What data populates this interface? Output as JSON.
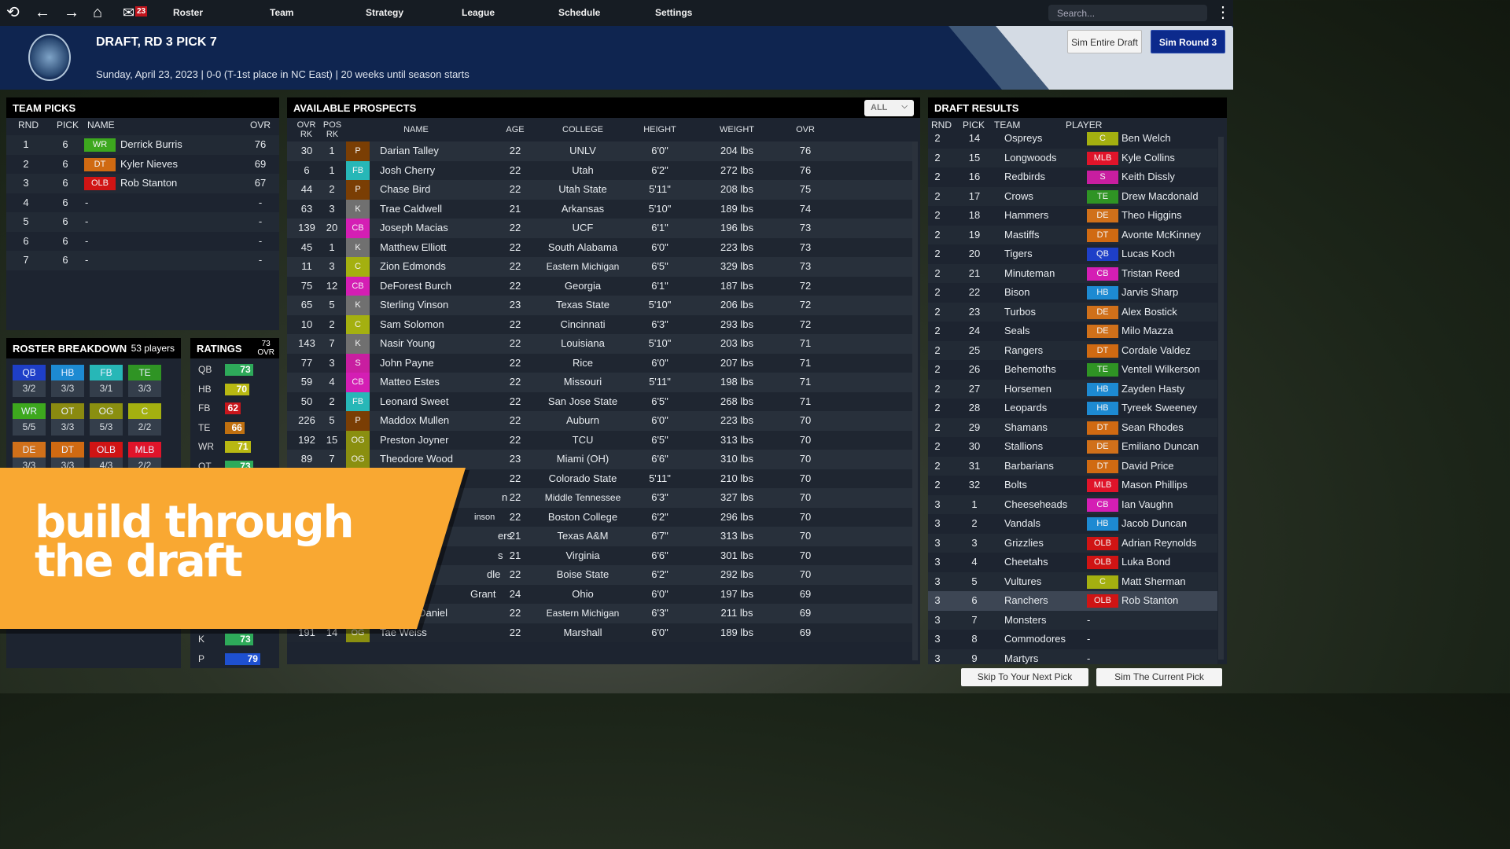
{
  "nav": {
    "mail_count": "23",
    "menu": [
      "Roster",
      "Team",
      "Strategy",
      "League",
      "Schedule",
      "Settings"
    ],
    "search_placeholder": "Search..."
  },
  "header": {
    "title": "DRAFT, RD 3 PICK 7",
    "subtitle": "Sunday, April 23, 2023 | 0-0 (T-1st place in NC East)  | 20 weeks until season starts",
    "sim_entire": "Sim Entire Draft",
    "sim_round": "Sim Round 3"
  },
  "colors": {
    "QB": "#1e3fc8",
    "HB": "#1d8ad2",
    "FB": "#27b7b7",
    "TE": "#2f9424",
    "WR": "#3da81e",
    "OT": "#8a8a10",
    "OG": "#8a8f10",
    "C": "#a4b010",
    "DE": "#d0701a",
    "DT": "#d06a12",
    "OLB": "#d01414",
    "MLB": "#e0142a",
    "CB": "#d41eb4",
    "S": "#c81ea0",
    "K": "#707070",
    "P": "#7a3e04"
  },
  "team_picks": {
    "title": "TEAM PICKS",
    "headers": [
      "RND",
      "PICK",
      "NAME",
      "OVR"
    ],
    "rows": [
      {
        "rnd": "1",
        "pick": "6",
        "pos": "WR",
        "name": "Derrick Burris",
        "ovr": "76"
      },
      {
        "rnd": "2",
        "pick": "6",
        "pos": "DT",
        "name": "Kyler Nieves",
        "ovr": "69"
      },
      {
        "rnd": "3",
        "pick": "6",
        "pos": "OLB",
        "name": "Rob Stanton",
        "ovr": "67"
      },
      {
        "rnd": "4",
        "pick": "6",
        "pos": "",
        "name": "-",
        "ovr": "-"
      },
      {
        "rnd": "5",
        "pick": "6",
        "pos": "",
        "name": "-",
        "ovr": "-"
      },
      {
        "rnd": "6",
        "pick": "6",
        "pos": "",
        "name": "-",
        "ovr": "-"
      },
      {
        "rnd": "7",
        "pick": "6",
        "pos": "",
        "name": "-",
        "ovr": "-"
      }
    ]
  },
  "roster": {
    "title": "ROSTER BREAKDOWN",
    "count": "53 players",
    "items": [
      {
        "pos": "QB",
        "val": "3/2"
      },
      {
        "pos": "HB",
        "val": "3/3"
      },
      {
        "pos": "FB",
        "val": "3/1"
      },
      {
        "pos": "TE",
        "val": "3/3"
      },
      {
        "pos": "WR",
        "val": "5/5"
      },
      {
        "pos": "OT",
        "val": "3/3"
      },
      {
        "pos": "OG",
        "val": "5/3"
      },
      {
        "pos": "C",
        "val": "2/2"
      },
      {
        "pos": "DE",
        "val": "3/3"
      },
      {
        "pos": "DT",
        "val": "3/3"
      },
      {
        "pos": "OLB",
        "val": "4/3"
      },
      {
        "pos": "MLB",
        "val": "2/2"
      }
    ]
  },
  "ratings": {
    "title": "RATINGS",
    "ovr": "73",
    "ovr_label": "OVR",
    "items": [
      {
        "pos": "QB",
        "val": 73,
        "color": "#2eaa5a"
      },
      {
        "pos": "HB",
        "val": 70,
        "color": "#b8b812"
      },
      {
        "pos": "FB",
        "val": 62,
        "color": "#c8161c"
      },
      {
        "pos": "TE",
        "val": 66,
        "color": "#c07010"
      },
      {
        "pos": "WR",
        "val": 71,
        "color": "#b8b812"
      },
      {
        "pos": "OT",
        "val": 73,
        "color": "#2eaa5a"
      }
    ],
    "bottom": [
      {
        "pos": "K",
        "val": 73,
        "color": "#2eaa5a"
      },
      {
        "pos": "P",
        "val": 79,
        "color": "#1e50d0"
      }
    ]
  },
  "prospects": {
    "title": "AVAILABLE PROSPECTS",
    "filter": "ALL",
    "headers": {
      "ovr_rk": "OVR RK",
      "pos_rk": "POS RK",
      "name": "NAME",
      "age": "AGE",
      "college": "COLLEGE",
      "height": "HEIGHT",
      "weight": "WEIGHT",
      "ovr": "OVR"
    },
    "rows": [
      [
        "30",
        "1",
        "P",
        "Darian Talley",
        "22",
        "UNLV",
        "6'0\"",
        "204 lbs",
        "76"
      ],
      [
        "6",
        "1",
        "FB",
        "Josh Cherry",
        "22",
        "Utah",
        "6'2\"",
        "272 lbs",
        "76"
      ],
      [
        "44",
        "2",
        "P",
        "Chase Bird",
        "22",
        "Utah State",
        "5'11\"",
        "208 lbs",
        "75"
      ],
      [
        "63",
        "3",
        "K",
        "Trae Caldwell",
        "21",
        "Arkansas",
        "5'10\"",
        "189 lbs",
        "74"
      ],
      [
        "139",
        "20",
        "CB",
        "Joseph Macias",
        "22",
        "UCF",
        "6'1\"",
        "196 lbs",
        "73"
      ],
      [
        "45",
        "1",
        "K",
        "Matthew Elliott",
        "22",
        "South Alabama",
        "6'0\"",
        "223 lbs",
        "73"
      ],
      [
        "11",
        "3",
        "C",
        "Zion Edmonds",
        "22",
        "Eastern Michigan",
        "6'5\"",
        "329 lbs",
        "73"
      ],
      [
        "75",
        "12",
        "CB",
        "DeForest Burch",
        "22",
        "Georgia",
        "6'1\"",
        "187 lbs",
        "72"
      ],
      [
        "65",
        "5",
        "K",
        "Sterling Vinson",
        "23",
        "Texas State",
        "5'10\"",
        "206 lbs",
        "72"
      ],
      [
        "10",
        "2",
        "C",
        "Sam Solomon",
        "22",
        "Cincinnati",
        "6'3\"",
        "293 lbs",
        "72"
      ],
      [
        "143",
        "7",
        "K",
        "Nasir Young",
        "22",
        "Louisiana",
        "5'10\"",
        "203 lbs",
        "71"
      ],
      [
        "77",
        "3",
        "S",
        "John Payne",
        "22",
        "Rice",
        "6'0\"",
        "207 lbs",
        "71"
      ],
      [
        "59",
        "4",
        "CB",
        "Matteo Estes",
        "22",
        "Missouri",
        "5'11\"",
        "198 lbs",
        "71"
      ],
      [
        "50",
        "2",
        "FB",
        "Leonard Sweet",
        "22",
        "San Jose State",
        "6'5\"",
        "268 lbs",
        "71"
      ],
      [
        "226",
        "5",
        "P",
        "Maddox Mullen",
        "22",
        "Auburn",
        "6'0\"",
        "223 lbs",
        "70"
      ],
      [
        "192",
        "15",
        "OG",
        "Preston Joyner",
        "22",
        "TCU",
        "6'5\"",
        "313 lbs",
        "70"
      ],
      [
        "89",
        "7",
        "OG",
        "Theodore Wood",
        "23",
        "Miami (OH)",
        "6'6\"",
        "310 lbs",
        "70"
      ],
      [
        "",
        "",
        "",
        "",
        "22",
        "Colorado State",
        "5'11\"",
        "210 lbs",
        "70"
      ],
      [
        "",
        "",
        "",
        "n",
        "22",
        "Middle Tennessee",
        "6'3\"",
        "327 lbs",
        "70"
      ],
      [
        "",
        "",
        "",
        "inson",
        "22",
        "Boston College",
        "6'2\"",
        "296 lbs",
        "70"
      ],
      [
        "",
        "",
        "",
        "ers",
        "21",
        "Texas A&M",
        "6'7\"",
        "313 lbs",
        "70"
      ],
      [
        "",
        "",
        "",
        "s",
        "21",
        "Virginia",
        "6'6\"",
        "301 lbs",
        "70"
      ],
      [
        "",
        "",
        "",
        "dle",
        "22",
        "Boise State",
        "6'2\"",
        "292 lbs",
        "70"
      ],
      [
        "",
        "",
        "",
        "Grant",
        "24",
        "Ohio",
        "6'0\"",
        "197 lbs",
        "69"
      ],
      [
        "220",
        "29",
        "CB",
        "Juan McDaniel",
        "22",
        "Eastern Michigan",
        "6'3\"",
        "211 lbs",
        "69"
      ],
      [
        "191",
        "14",
        "OG",
        "Tae Weiss",
        "22",
        "Marshall",
        "6'0\"",
        "189 lbs",
        "69"
      ]
    ]
  },
  "results": {
    "title": "DRAFT RESULTS",
    "headers": [
      "RND",
      "PICK",
      "TEAM",
      "PLAYER"
    ],
    "rows": [
      [
        "2",
        "14",
        "Ospreys",
        "C",
        "Ben Welch"
      ],
      [
        "2",
        "15",
        "Longwoods",
        "MLB",
        "Kyle Collins"
      ],
      [
        "2",
        "16",
        "Redbirds",
        "S",
        "Keith Dissly"
      ],
      [
        "2",
        "17",
        "Crows",
        "TE",
        "Drew Macdonald"
      ],
      [
        "2",
        "18",
        "Hammers",
        "DE",
        "Theo Higgins"
      ],
      [
        "2",
        "19",
        "Mastiffs",
        "DT",
        "Avonte McKinney"
      ],
      [
        "2",
        "20",
        "Tigers",
        "QB",
        "Lucas Koch"
      ],
      [
        "2",
        "21",
        "Minuteman",
        "CB",
        "Tristan Reed"
      ],
      [
        "2",
        "22",
        "Bison",
        "HB",
        "Jarvis Sharp"
      ],
      [
        "2",
        "23",
        "Turbos",
        "DE",
        "Alex Bostick"
      ],
      [
        "2",
        "24",
        "Seals",
        "DE",
        "Milo Mazza"
      ],
      [
        "2",
        "25",
        "Rangers",
        "DT",
        "Cordale Valdez"
      ],
      [
        "2",
        "26",
        "Behemoths",
        "TE",
        "Ventell Wilkerson"
      ],
      [
        "2",
        "27",
        "Horsemen",
        "HB",
        "Zayden Hasty"
      ],
      [
        "2",
        "28",
        "Leopards",
        "HB",
        "Tyreek Sweeney"
      ],
      [
        "2",
        "29",
        "Shamans",
        "DT",
        "Sean Rhodes"
      ],
      [
        "2",
        "30",
        "Stallions",
        "DE",
        "Emiliano Duncan"
      ],
      [
        "2",
        "31",
        "Barbarians",
        "DT",
        "David Price"
      ],
      [
        "2",
        "32",
        "Bolts",
        "MLB",
        "Mason Phillips"
      ],
      [
        "3",
        "1",
        "Cheeseheads",
        "CB",
        "Ian Vaughn"
      ],
      [
        "3",
        "2",
        "Vandals",
        "HB",
        "Jacob Duncan"
      ],
      [
        "3",
        "3",
        "Grizzlies",
        "OLB",
        "Adrian Reynolds"
      ],
      [
        "3",
        "4",
        "Cheetahs",
        "OLB",
        "Luka Bond"
      ],
      [
        "3",
        "5",
        "Vultures",
        "C",
        "Matt Sherman"
      ],
      [
        "3",
        "6",
        "Ranchers",
        "OLB",
        "Rob Stanton"
      ],
      [
        "3",
        "7",
        "Monsters",
        "",
        "-"
      ],
      [
        "3",
        "8",
        "Commodores",
        "",
        "-"
      ],
      [
        "3",
        "9",
        "Martyrs",
        "",
        "-"
      ]
    ]
  },
  "footer": {
    "skip": "Skip To Your Next Pick",
    "sim_current": "Sim The Current Pick"
  },
  "promo": {
    "line1": "build through",
    "line2": "the draft"
  }
}
